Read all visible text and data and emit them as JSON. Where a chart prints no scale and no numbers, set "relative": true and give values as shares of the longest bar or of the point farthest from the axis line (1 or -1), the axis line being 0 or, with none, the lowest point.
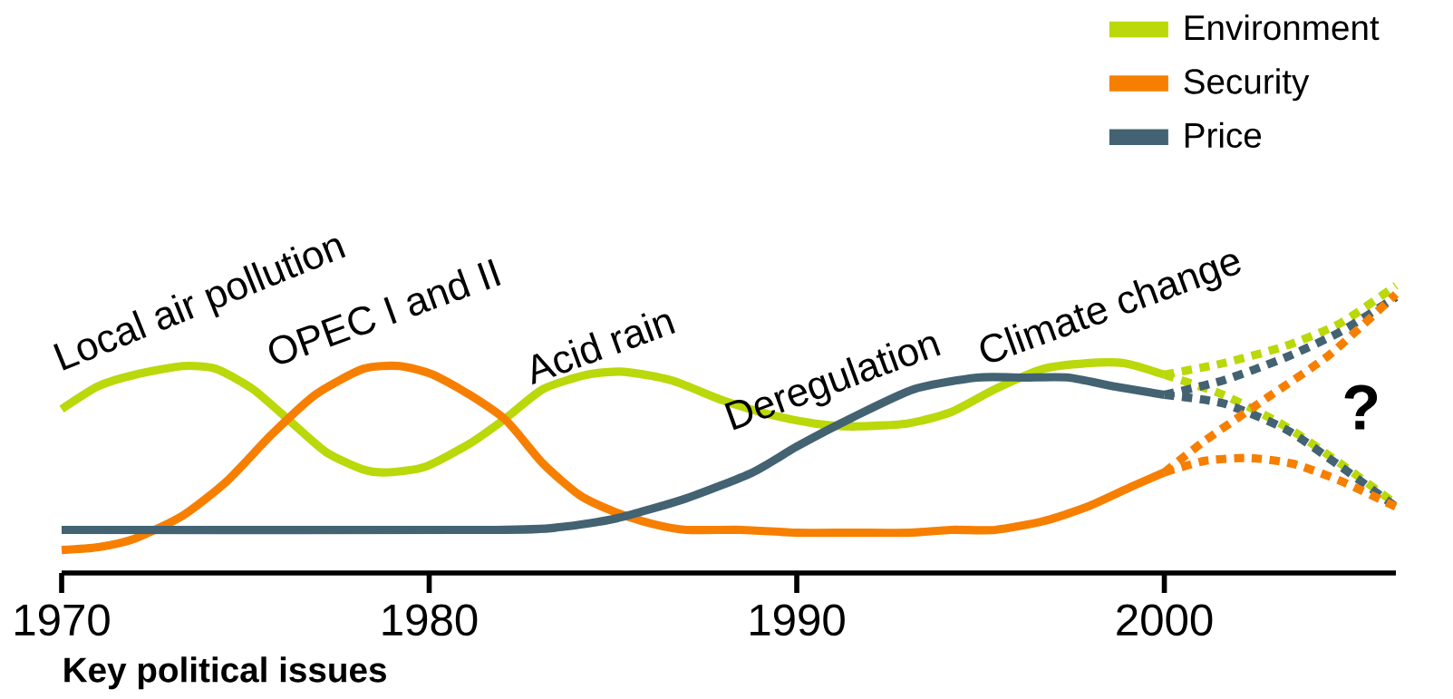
{
  "chart_data": {
    "type": "line",
    "title": "Key political issues",
    "relative": true,
    "xlim": [
      1970,
      2006.3
    ],
    "xticks": [
      1970,
      1980,
      1990,
      2000
    ],
    "grid": false,
    "legend": "top right",
    "marker": "none",
    "annotations": [
      "Local air pollution",
      "OPEC I and II",
      "Acid rain",
      "Deregulation",
      "Climate change",
      "?"
    ],
    "series": [
      {
        "name": "Environment",
        "color": "#bad80a",
        "line_style": "solid",
        "x": [
          1970,
          1971.0,
          1972.0,
          1973.3,
          1974.2,
          1975.2,
          1976.2,
          1977.2,
          1978.2,
          1978.9,
          1979.9,
          1981.1,
          1982.1,
          1983.1,
          1984.3,
          1985.3,
          1986.6,
          1988.0,
          1989.3,
          1990.5,
          1991.5,
          1993.0,
          1994.2,
          1995.4,
          1996.7,
          1997.9,
          1998.9,
          2000.0
        ],
        "values": [
          0.57,
          0.65,
          0.69,
          0.72,
          0.71,
          0.64,
          0.53,
          0.42,
          0.36,
          0.35,
          0.37,
          0.45,
          0.54,
          0.64,
          0.69,
          0.7,
          0.67,
          0.6,
          0.55,
          0.52,
          0.51,
          0.52,
          0.56,
          0.64,
          0.71,
          0.73,
          0.73,
          0.69
        ]
      },
      {
        "name": "Security",
        "color": "#f77f00",
        "line_style": "solid",
        "x": [
          1970,
          1971.0,
          1972.0,
          1973.3,
          1974.5,
          1975.7,
          1976.9,
          1978.2,
          1979.2,
          1980.1,
          1981.1,
          1982.1,
          1983.1,
          1984.1,
          1985.1,
          1986.1,
          1987.0,
          1988.5,
          1990.0,
          1991.5,
          1993.0,
          1994.2,
          1995.4,
          1996.7,
          1997.9,
          1999.1,
          2000.0
        ],
        "values": [
          0.08,
          0.09,
          0.12,
          0.2,
          0.32,
          0.48,
          0.62,
          0.71,
          0.72,
          0.69,
          0.62,
          0.53,
          0.38,
          0.27,
          0.21,
          0.17,
          0.15,
          0.15,
          0.14,
          0.14,
          0.14,
          0.15,
          0.15,
          0.18,
          0.23,
          0.3,
          0.35
        ]
      },
      {
        "name": "Price",
        "color": "#436272",
        "line_style": "solid",
        "x": [
          1970,
          1981.8,
          1983.6,
          1985.1,
          1987.0,
          1988.8,
          1990.0,
          1991.5,
          1993.2,
          1994.9,
          1996.2,
          1997.4,
          1998.6,
          2000.0
        ],
        "values": [
          0.15,
          0.15,
          0.16,
          0.19,
          0.26,
          0.35,
          0.44,
          0.54,
          0.64,
          0.68,
          0.68,
          0.68,
          0.65,
          0.62
        ]
      },
      {
        "color": "#bad80a",
        "line_style": "dotted",
        "x": [
          2000.0,
          2001.6,
          2003.3,
          2004.8,
          2006.3
        ],
        "values": [
          0.69,
          0.73,
          0.79,
          0.87,
          1.0
        ]
      },
      {
        "color": "#bad80a",
        "line_style": "dotted",
        "x": [
          2000.0,
          2001.6,
          2003.3,
          2004.8,
          2006.3
        ],
        "values": [
          0.69,
          0.62,
          0.51,
          0.38,
          0.24
        ]
      },
      {
        "color": "#436272",
        "line_style": "dotted",
        "x": [
          2000.0,
          2001.6,
          2003.3,
          2004.8,
          2006.3
        ],
        "values": [
          0.62,
          0.67,
          0.75,
          0.84,
          0.96
        ]
      },
      {
        "color": "#436272",
        "line_style": "dotted",
        "x": [
          2000.0,
          2001.6,
          2003.3,
          2004.8,
          2006.3
        ],
        "values": [
          0.62,
          0.59,
          0.5,
          0.37,
          0.23
        ]
      },
      {
        "color": "#f77f00",
        "line_style": "dotted",
        "x": [
          2000.0,
          2001.1,
          2002.8,
          2004.5,
          2006.3
        ],
        "values": [
          0.35,
          0.46,
          0.61,
          0.76,
          0.97
        ]
      },
      {
        "color": "#f77f00",
        "line_style": "dotted",
        "x": [
          2000.0,
          2001.1,
          2002.3,
          2003.5,
          2004.8,
          2006.3
        ],
        "values": [
          0.35,
          0.39,
          0.4,
          0.38,
          0.32,
          0.23
        ]
      }
    ]
  }
}
